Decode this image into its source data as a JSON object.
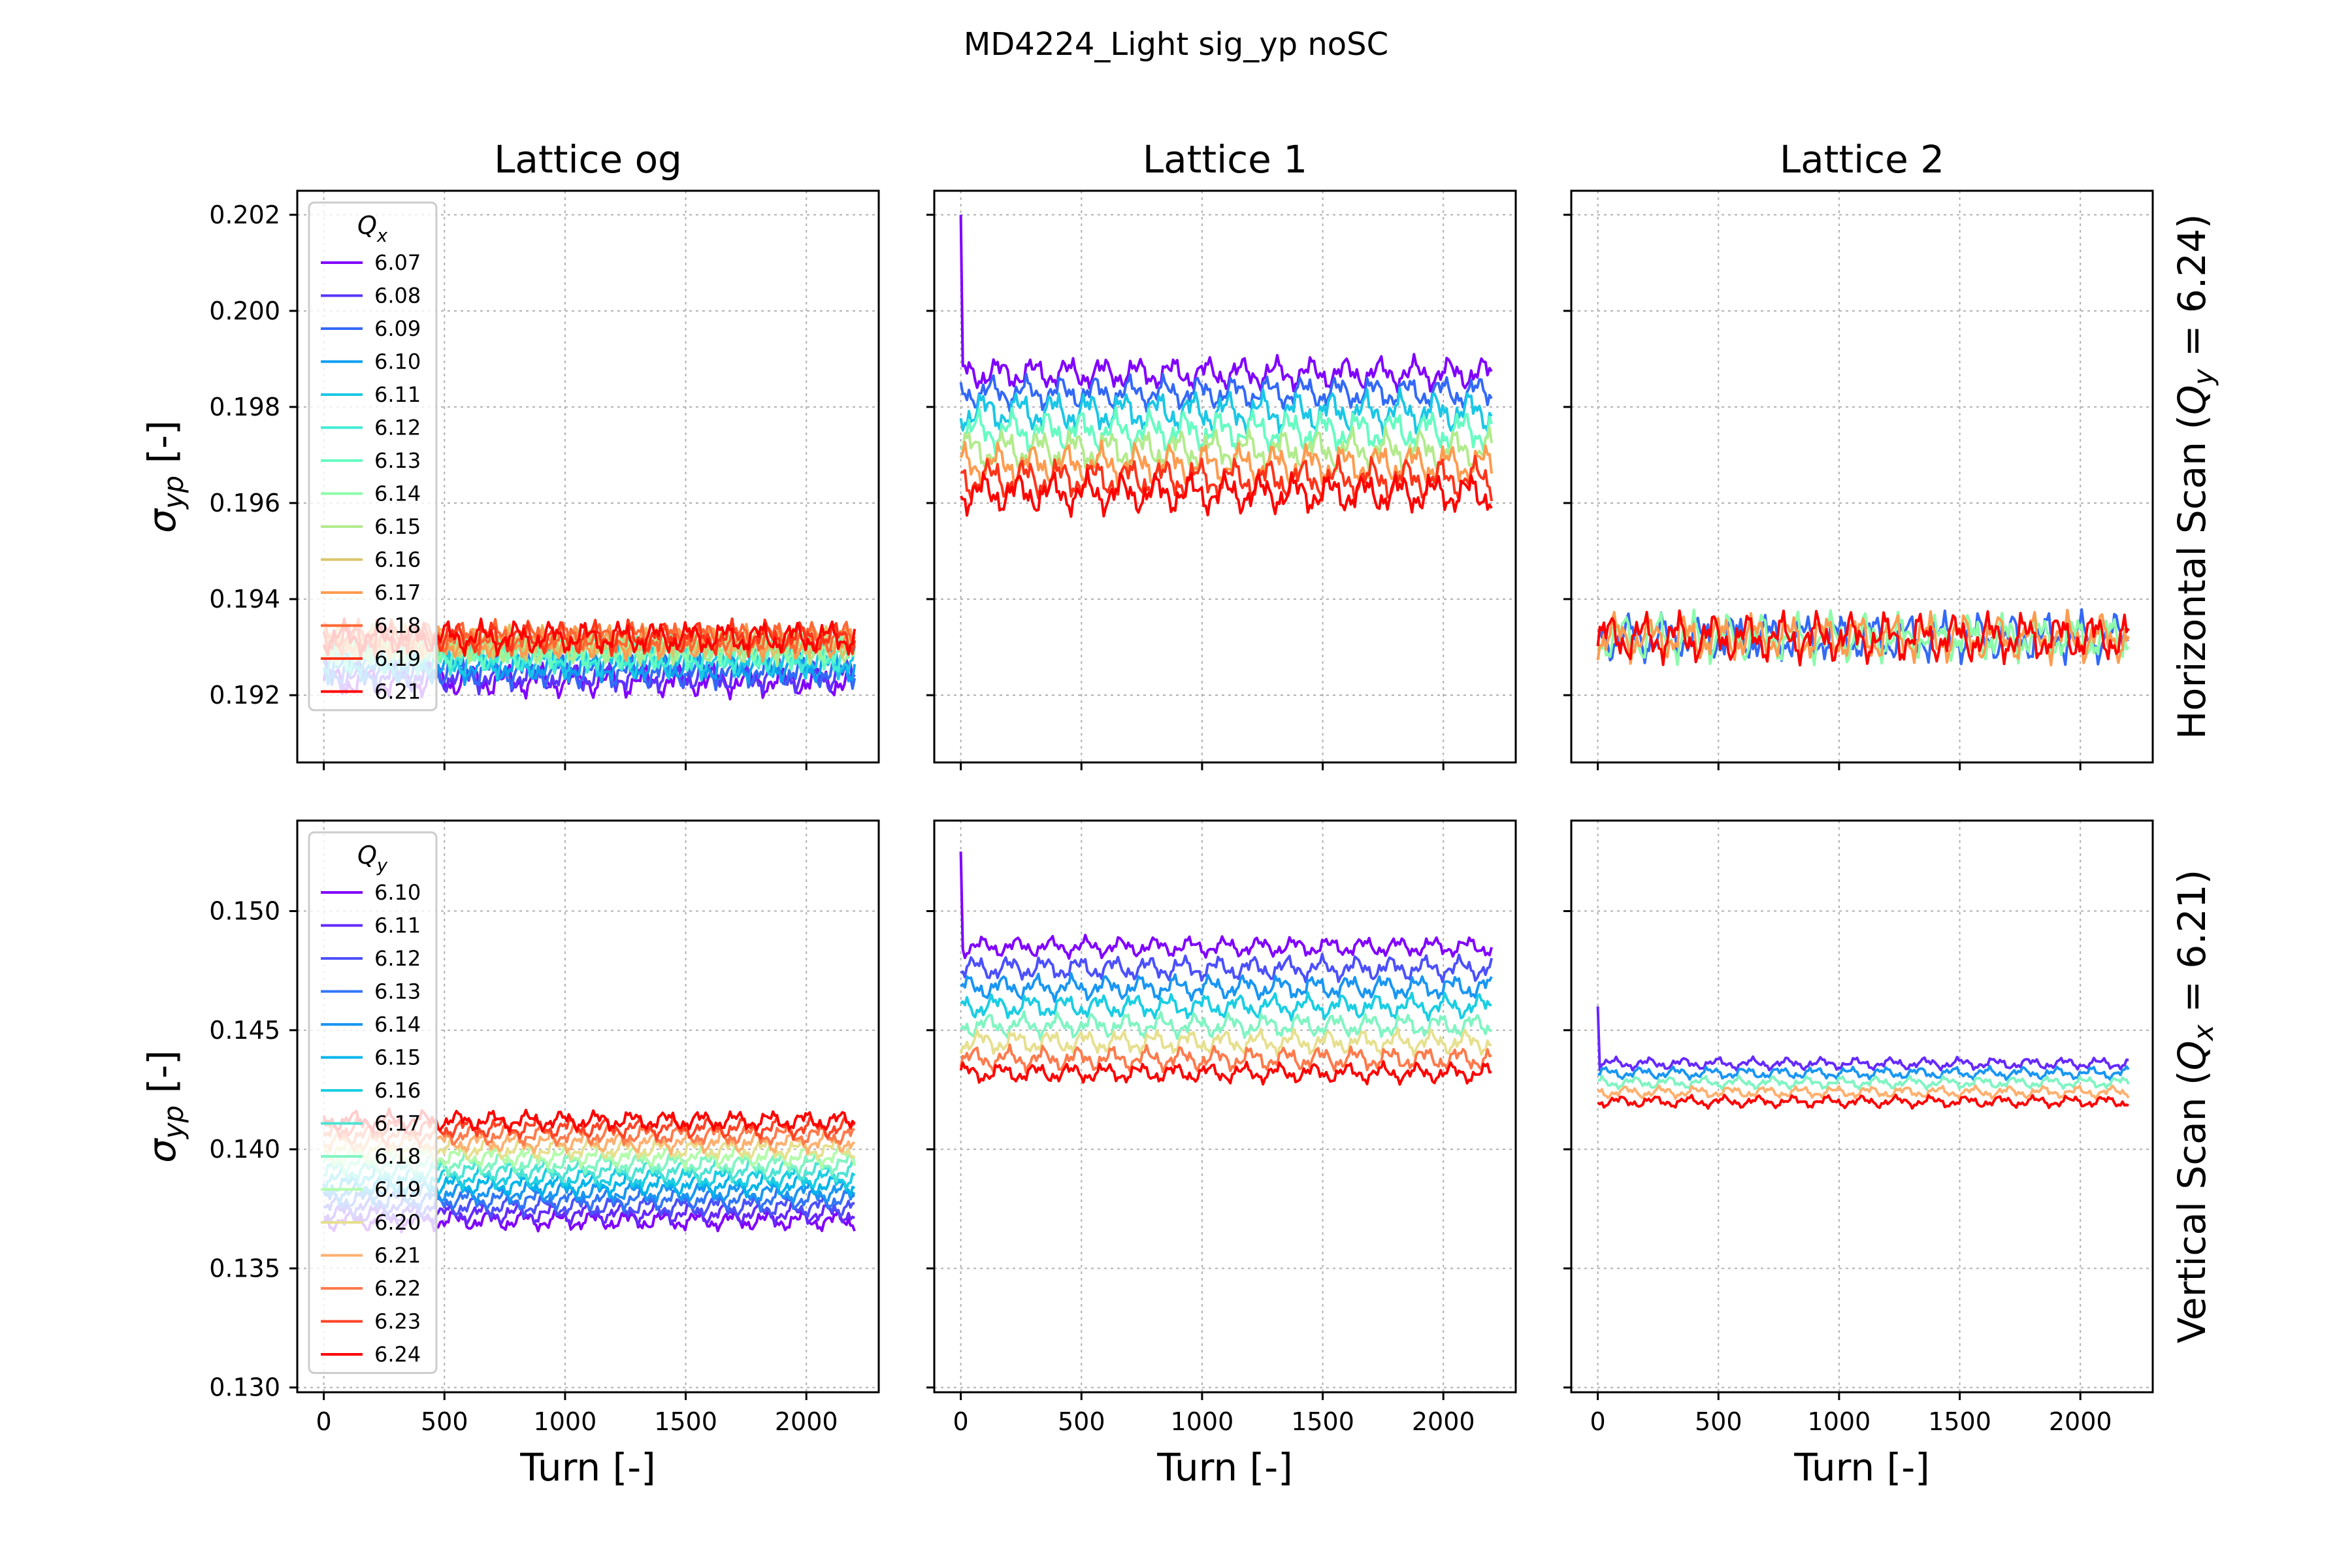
{
  "figure": {
    "suptitle": "MD4224_Light sig_yp noSC",
    "column_titles": [
      "Lattice og",
      "Lattice 1",
      "Lattice 2"
    ],
    "row_labels": [
      "Horizontal Scan (Q_y = 6.24)",
      "Vertical Scan (Q_x = 6.21)"
    ],
    "row_label_parts": [
      {
        "pre": "Horizontal Scan (",
        "sym": "Q",
        "sub": "y",
        "post": " = 6.24)"
      },
      {
        "pre": "Vertical Scan (",
        "sym": "Q",
        "sub": "x",
        "post": " = 6.21)"
      }
    ],
    "xlabel": "Turn [-]",
    "ylabel": "σ_yp [-]",
    "ylabel_sym": "σ",
    "ylabel_sub": "yp",
    "ylabel_unit": " [-]"
  },
  "chart_data": [
    {
      "type": "line",
      "row": 0,
      "col": 0,
      "title": "Lattice og",
      "xlabel": "",
      "ylabel": "σ_yp [-]",
      "xlim": [
        -110,
        2300
      ],
      "ylim": [
        0.1906,
        0.2025
      ],
      "xticks": [
        0,
        500,
        1000,
        1500,
        2000
      ],
      "yticks": [
        0.192,
        0.194,
        0.196,
        0.198,
        0.2,
        0.202
      ],
      "ytick_labels": [
        "0.192",
        "0.194",
        "0.196",
        "0.198",
        "0.200",
        "0.202"
      ],
      "grid": true,
      "legend": {
        "title": "Q_x",
        "title_sym": "Q",
        "title_sub": "x",
        "placement": "upper-left"
      },
      "series": [
        {
          "name": "6.07",
          "color": "#8000ff",
          "base": 0.1923,
          "amp": 0.0004
        },
        {
          "name": "6.08",
          "color": "#5a36fd",
          "base": 0.1924,
          "amp": 0.0004
        },
        {
          "name": "6.09",
          "color": "#3369f8",
          "base": 0.1925,
          "amp": 0.0004
        },
        {
          "name": "6.10",
          "color": "#0d9ef0",
          "base": 0.1926,
          "amp": 0.0004
        },
        {
          "name": "6.11",
          "color": "#1ac7e6",
          "base": 0.1927,
          "amp": 0.0004
        },
        {
          "name": "6.12",
          "color": "#40ecd4",
          "base": 0.1928,
          "amp": 0.0004
        },
        {
          "name": "6.13",
          "color": "#66fcc2",
          "base": 0.1929,
          "amp": 0.0004
        },
        {
          "name": "6.14",
          "color": "#8cfca9",
          "base": 0.193,
          "amp": 0.0004
        },
        {
          "name": "6.15",
          "color": "#b2eb8c",
          "base": 0.193,
          "amp": 0.0004
        },
        {
          "name": "6.16",
          "color": "#d9c66b",
          "base": 0.1931,
          "amp": 0.0004
        },
        {
          "name": "6.17",
          "color": "#ff9b4f",
          "base": 0.1931,
          "amp": 0.0004
        },
        {
          "name": "6.18",
          "color": "#ff6733",
          "base": 0.1932,
          "amp": 0.0004
        },
        {
          "name": "6.19",
          "color": "#ff341a",
          "base": 0.1932,
          "amp": 0.0004
        },
        {
          "name": "6.21",
          "color": "#ff0000",
          "base": 0.1932,
          "amp": 0.0004
        }
      ]
    },
    {
      "type": "line",
      "row": 0,
      "col": 1,
      "title": "Lattice 1",
      "xlim": [
        -110,
        2300
      ],
      "ylim": [
        0.1906,
        0.2025
      ],
      "xticks": [
        0,
        500,
        1000,
        1500,
        2000
      ],
      "yticks": [
        0.192,
        0.194,
        0.196,
        0.198,
        0.2,
        0.202
      ],
      "grid": true,
      "series": [
        {
          "name": "6.07",
          "color": "#8000ff",
          "base": 0.1987,
          "amp": 0.0004,
          "spike": 0.202
        },
        {
          "name": "6.09",
          "color": "#3369f8",
          "base": 0.1983,
          "amp": 0.0004
        },
        {
          "name": "6.11",
          "color": "#1ac7e6",
          "base": 0.1979,
          "amp": 0.0005
        },
        {
          "name": "6.13",
          "color": "#66fcc2",
          "base": 0.1975,
          "amp": 0.0005
        },
        {
          "name": "6.15",
          "color": "#b2eb8c",
          "base": 0.1971,
          "amp": 0.0005
        },
        {
          "name": "6.17",
          "color": "#ff9b4f",
          "base": 0.1968,
          "amp": 0.0005
        },
        {
          "name": "6.19",
          "color": "#ff341a",
          "base": 0.1965,
          "amp": 0.0005
        },
        {
          "name": "6.21",
          "color": "#ff0000",
          "base": 0.1962,
          "amp": 0.0005
        }
      ]
    },
    {
      "type": "line",
      "row": 0,
      "col": 2,
      "title": "Lattice 2",
      "xlim": [
        -110,
        2300
      ],
      "ylim": [
        0.1906,
        0.2025
      ],
      "xticks": [
        0,
        500,
        1000,
        1500,
        2000
      ],
      "yticks": [
        0.192,
        0.194,
        0.196,
        0.198,
        0.2,
        0.202
      ],
      "grid": true,
      "series": [
        {
          "name": "6.09",
          "color": "#3369f8",
          "base": 0.1932,
          "amp": 0.0006
        },
        {
          "name": "6.14",
          "color": "#8cfca9",
          "base": 0.1932,
          "amp": 0.0006
        },
        {
          "name": "6.17",
          "color": "#ff9b4f",
          "base": 0.1932,
          "amp": 0.0006
        },
        {
          "name": "6.21",
          "color": "#ff0000",
          "base": 0.1932,
          "amp": 0.0006
        }
      ]
    },
    {
      "type": "line",
      "row": 1,
      "col": 0,
      "xlabel": "Turn [-]",
      "ylabel": "σ_yp [-]",
      "xlim": [
        -110,
        2300
      ],
      "ylim": [
        0.1298,
        0.1538
      ],
      "xticks": [
        0,
        500,
        1000,
        1500,
        2000
      ],
      "yticks": [
        0.13,
        0.135,
        0.14,
        0.145,
        0.15
      ],
      "ytick_labels": [
        "0.130",
        "0.135",
        "0.140",
        "0.145",
        "0.150"
      ],
      "grid": true,
      "legend": {
        "title": "Q_y",
        "title_sym": "Q",
        "title_sub": "y",
        "placement": "upper-left"
      },
      "series": [
        {
          "name": "6.10",
          "color": "#8000ff",
          "base": 0.137,
          "amp": 0.0005
        },
        {
          "name": "6.11",
          "color": "#6629fe",
          "base": 0.1373,
          "amp": 0.0005
        },
        {
          "name": "6.12",
          "color": "#4c50fc",
          "base": 0.1376,
          "amp": 0.0005
        },
        {
          "name": "6.13",
          "color": "#3176f8",
          "base": 0.1379,
          "amp": 0.0005
        },
        {
          "name": "6.14",
          "color": "#1996f3",
          "base": 0.1382,
          "amp": 0.0005
        },
        {
          "name": "6.15",
          "color": "#00b5eb",
          "base": 0.1385,
          "amp": 0.0005
        },
        {
          "name": "6.16",
          "color": "#1acee3",
          "base": 0.1388,
          "amp": 0.0005
        },
        {
          "name": "6.17",
          "color": "#4ce4d4",
          "base": 0.1391,
          "amp": 0.0005
        },
        {
          "name": "6.18",
          "color": "#80f5c2",
          "base": 0.1394,
          "amp": 0.0005
        },
        {
          "name": "6.19",
          "color": "#b2fcaa",
          "base": 0.1397,
          "amp": 0.0005
        },
        {
          "name": "6.20",
          "color": "#e6e08f",
          "base": 0.14,
          "amp": 0.0005
        },
        {
          "name": "6.21",
          "color": "#ffb06f",
          "base": 0.1403,
          "amp": 0.0005
        },
        {
          "name": "6.22",
          "color": "#ff7a4c",
          "base": 0.1406,
          "amp": 0.0005
        },
        {
          "name": "6.23",
          "color": "#ff4326",
          "base": 0.1409,
          "amp": 0.0005
        },
        {
          "name": "6.24",
          "color": "#ff0000",
          "base": 0.1412,
          "amp": 0.0005
        }
      ]
    },
    {
      "type": "line",
      "row": 1,
      "col": 1,
      "xlabel": "Turn [-]",
      "xlim": [
        -110,
        2300
      ],
      "ylim": [
        0.1298,
        0.1538
      ],
      "xticks": [
        0,
        500,
        1000,
        1500,
        2000
      ],
      "yticks": [
        0.13,
        0.135,
        0.14,
        0.145,
        0.15
      ],
      "grid": true,
      "series": [
        {
          "name": "6.10",
          "color": "#8000ff",
          "base": 0.1485,
          "amp": 0.0005,
          "spike": 0.1525
        },
        {
          "name": "6.12",
          "color": "#4c50fc",
          "base": 0.1476,
          "amp": 0.0006
        },
        {
          "name": "6.14",
          "color": "#1996f3",
          "base": 0.1468,
          "amp": 0.0006
        },
        {
          "name": "6.16",
          "color": "#1acee3",
          "base": 0.146,
          "amp": 0.0006
        },
        {
          "name": "6.18",
          "color": "#80f5c2",
          "base": 0.1452,
          "amp": 0.0006
        },
        {
          "name": "6.20",
          "color": "#e6e08f",
          "base": 0.1445,
          "amp": 0.0006
        },
        {
          "name": "6.22",
          "color": "#ff7a4c",
          "base": 0.1438,
          "amp": 0.0006
        },
        {
          "name": "6.24",
          "color": "#ff0000",
          "base": 0.1432,
          "amp": 0.0005
        }
      ]
    },
    {
      "type": "line",
      "row": 1,
      "col": 2,
      "xlabel": "Turn [-]",
      "xlim": [
        -110,
        2300
      ],
      "ylim": [
        0.1298,
        0.1538
      ],
      "xticks": [
        0,
        500,
        1000,
        1500,
        2000
      ],
      "yticks": [
        0.13,
        0.135,
        0.14,
        0.145,
        0.15
      ],
      "grid": true,
      "series": [
        {
          "name": "6.10",
          "color": "#6629fe",
          "base": 0.1436,
          "amp": 0.0003,
          "spike": 0.146
        },
        {
          "name": "6.14",
          "color": "#1996f3",
          "base": 0.1432,
          "amp": 0.0003
        },
        {
          "name": "6.18",
          "color": "#80f5c2",
          "base": 0.1428,
          "amp": 0.0003
        },
        {
          "name": "6.21",
          "color": "#ffb06f",
          "base": 0.1424,
          "amp": 0.0003
        },
        {
          "name": "6.24",
          "color": "#ff0000",
          "base": 0.142,
          "amp": 0.0003
        }
      ]
    }
  ]
}
